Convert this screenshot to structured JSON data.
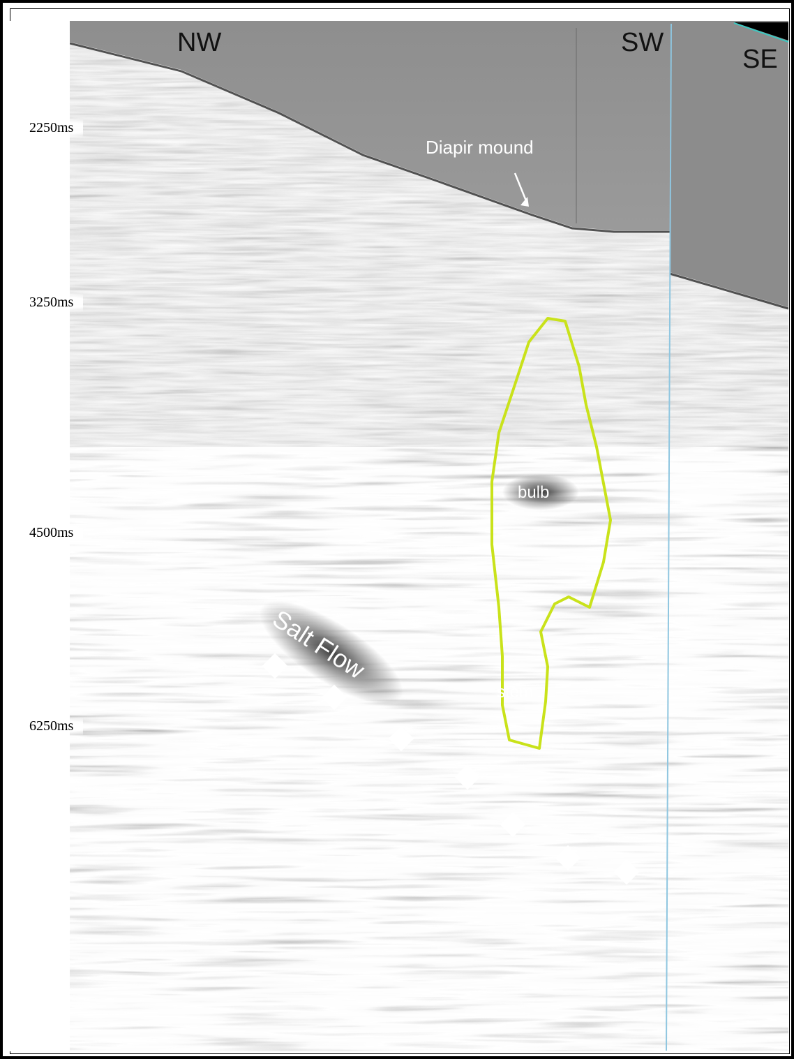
{
  "time_axis": {
    "ticks": [
      "2250ms",
      "3250ms",
      "4500ms",
      "6250ms"
    ]
  },
  "directions": {
    "left": "NW",
    "middle": "SW",
    "right": "SE"
  },
  "annotations": {
    "mound": "Diapir mound",
    "salt_flow": "Salt Flow",
    "bulb": "bulb",
    "stem": "stem"
  },
  "colors": {
    "outline": "#c9e21a",
    "background_gray": "#8a8a8a",
    "panel_divider": "#7fb8d8",
    "marker": "#ffffff"
  }
}
